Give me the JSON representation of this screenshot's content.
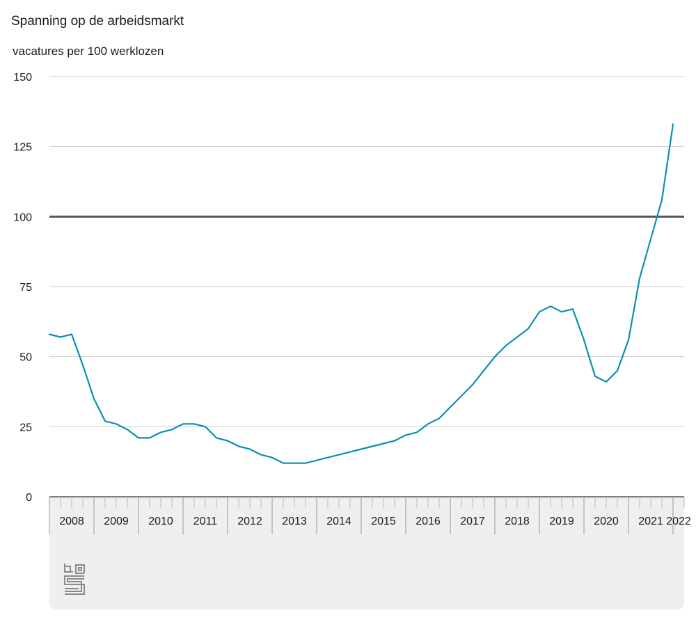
{
  "chart_data": {
    "type": "line",
    "title": "Spanning op de arbeidsmarkt",
    "ylabel": "vacatures per 100 werklozen",
    "ylim": [
      0,
      150
    ],
    "yticks": [
      0,
      25,
      50,
      75,
      100,
      125,
      150
    ],
    "reference_line": 100,
    "grid": true,
    "x_tick_labels": [
      "2008",
      "2009",
      "2010",
      "2011",
      "2012",
      "2013",
      "2014",
      "2015",
      "2016",
      "2017",
      "2018",
      "2019",
      "2020",
      "2021",
      "2022"
    ],
    "x_start": 2008,
    "x_end": 2022.25,
    "series": [
      {
        "color": "#0b8fb3",
        "x": [
          2008.0,
          2008.25,
          2008.5,
          2008.75,
          2009.0,
          2009.25,
          2009.5,
          2009.75,
          2010.0,
          2010.25,
          2010.5,
          2010.75,
          2011.0,
          2011.25,
          2011.5,
          2011.75,
          2012.0,
          2012.25,
          2012.5,
          2012.75,
          2013.0,
          2013.25,
          2013.5,
          2013.75,
          2014.0,
          2014.25,
          2014.5,
          2014.75,
          2015.0,
          2015.25,
          2015.5,
          2015.75,
          2016.0,
          2016.25,
          2016.5,
          2016.75,
          2017.0,
          2017.25,
          2017.5,
          2017.75,
          2018.0,
          2018.25,
          2018.5,
          2018.75,
          2019.0,
          2019.25,
          2019.5,
          2019.75,
          2020.0,
          2020.25,
          2020.5,
          2020.75,
          2021.0,
          2021.25,
          2021.5,
          2021.75,
          2022.0
        ],
        "values": [
          58,
          57,
          58,
          47,
          35,
          27,
          26,
          24,
          21,
          21,
          23,
          24,
          26,
          26,
          25,
          21,
          20,
          18,
          17,
          15,
          14,
          12,
          12,
          12,
          13,
          14,
          15,
          16,
          17,
          18,
          19,
          20,
          22,
          23,
          26,
          28,
          32,
          36,
          40,
          45,
          50,
          54,
          57,
          60,
          66,
          68,
          66,
          67,
          56,
          43,
          41,
          45,
          56,
          78,
          92,
          106,
          133
        ]
      }
    ]
  },
  "logo_text": "cbs"
}
